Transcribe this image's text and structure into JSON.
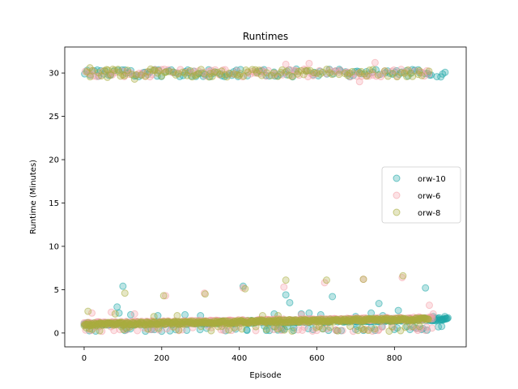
{
  "chart_data": {
    "type": "scatter",
    "title": "Runtimes",
    "xlabel": "Episode",
    "ylabel": "Runtime (Minutes)",
    "xlim": [
      -50,
      985
    ],
    "ylim": [
      -1.6,
      33
    ],
    "xticks": [
      0,
      200,
      400,
      600,
      800
    ],
    "yticks": [
      0,
      5,
      10,
      15,
      20,
      25,
      30
    ],
    "grid": false,
    "legend_position": "center-right",
    "series": [
      {
        "name": "orw-10",
        "color": "#1ea7a7",
        "episodes": 940,
        "main_band": {
          "start": 1.0,
          "end": 1.6
        },
        "timeout_level": 30.0,
        "outliers": [
          [
            100,
            5.4
          ],
          [
            85,
            3.0
          ],
          [
            90,
            2.3
          ],
          [
            120,
            2.1
          ],
          [
            190,
            2.0
          ],
          [
            260,
            2.1
          ],
          [
            300,
            2.0
          ],
          [
            410,
            5.4
          ],
          [
            490,
            2.2
          ],
          [
            520,
            4.4
          ],
          [
            530,
            3.5
          ],
          [
            560,
            2.2
          ],
          [
            580,
            2.3
          ],
          [
            610,
            2.1
          ],
          [
            640,
            4.2
          ],
          [
            700,
            1.9
          ],
          [
            740,
            2.3
          ],
          [
            760,
            3.4
          ],
          [
            770,
            2.0
          ],
          [
            810,
            2.6
          ],
          [
            880,
            5.2
          ],
          [
            900,
            1.9
          ],
          [
            930,
            1.9
          ],
          [
            200,
            0.2
          ],
          [
            420,
            0.3
          ],
          [
            470,
            0.3
          ],
          [
            510,
            0.4
          ],
          [
            540,
            0.3
          ],
          [
            590,
            0.4
          ],
          [
            630,
            0.3
          ],
          [
            650,
            0.3
          ],
          [
            700,
            0.4
          ],
          [
            720,
            0.3
          ],
          [
            750,
            0.3
          ],
          [
            800,
            0.4
          ],
          [
            840,
            0.4
          ],
          [
            870,
            0.4
          ]
        ]
      },
      {
        "name": "orw-6",
        "color": "#f4a0a8",
        "episodes": 900,
        "main_band": {
          "start": 1.1,
          "end": 1.7
        },
        "timeout_level": 30.0,
        "outliers": [
          [
            20,
            2.3
          ],
          [
            70,
            2.4
          ],
          [
            130,
            2.2
          ],
          [
            210,
            4.3
          ],
          [
            310,
            4.6
          ],
          [
            410,
            5.2
          ],
          [
            515,
            5.3
          ],
          [
            560,
            2.1
          ],
          [
            620,
            5.8
          ],
          [
            720,
            6.2
          ],
          [
            820,
            6.4
          ],
          [
            890,
            3.2
          ],
          [
            900,
            2.2
          ],
          [
            360,
            0.3
          ],
          [
            380,
            0.3
          ],
          [
            600,
            0.3
          ],
          [
            650,
            0.3
          ],
          [
            720,
            0.4
          ],
          [
            760,
            0.4
          ],
          [
            860,
            0.3
          ],
          [
            880,
            0.3
          ],
          [
            710,
            29.0
          ],
          [
            520,
            31.0
          ],
          [
            580,
            31.1
          ],
          [
            750,
            31.2
          ]
        ]
      },
      {
        "name": "orw-8",
        "color": "#a8ad3e",
        "episodes": 890,
        "main_band": {
          "start": 1.0,
          "end": 1.6
        },
        "timeout_level": 30.0,
        "outliers": [
          [
            10,
            2.5
          ],
          [
            105,
            4.6
          ],
          [
            205,
            4.3
          ],
          [
            312,
            4.5
          ],
          [
            415,
            5.1
          ],
          [
            520,
            6.1
          ],
          [
            625,
            6.1
          ],
          [
            720,
            6.2
          ],
          [
            822,
            6.6
          ],
          [
            80,
            2.2
          ],
          [
            180,
            1.9
          ],
          [
            240,
            2.0
          ],
          [
            460,
            2.0
          ],
          [
            500,
            2.0
          ],
          [
            15,
            30.6
          ],
          [
            60,
            29.5
          ],
          [
            90,
            30.1
          ],
          [
            130,
            29.3
          ]
        ]
      }
    ]
  }
}
